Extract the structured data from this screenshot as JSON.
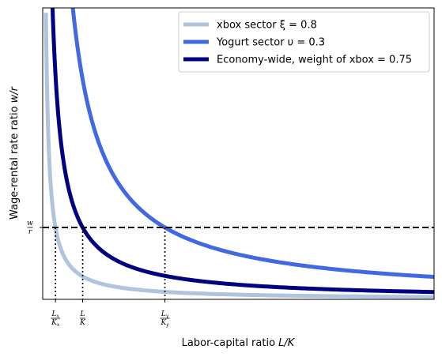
{
  "chart_data": {
    "type": "line",
    "title": "",
    "xlabel": "Labor-capital ratio L/K",
    "ylabel": "Wage-rental rate ratio w/r",
    "grid": false,
    "legend_placement": "top-right",
    "xlim": [
      0,
      4.9
    ],
    "ylim": [
      0,
      15
    ],
    "equilibrium_wage_rental": 3.7,
    "equilibrium_label": {
      "num": "w",
      "den": "r"
    },
    "ratio_marks": [
      {
        "num": "L",
        "sub_num": "x",
        "den": "K",
        "sub_den": "x",
        "x": 0.16
      },
      {
        "num": "L",
        "sub_num": "",
        "den": "K",
        "sub_den": "",
        "x": 0.5
      },
      {
        "num": "L",
        "sub_num": "y",
        "den": "K",
        "sub_den": "y",
        "x": 1.53
      }
    ],
    "series": [
      {
        "name": "xbox sector ξ = 0.8",
        "color": "#b0c4de",
        "coef": 0.59,
        "x_min": 0.04,
        "x_max": 4.9
      },
      {
        "name": "Yogurt sector υ = 0.3",
        "color": "#4169e1",
        "coef": 5.66,
        "x_min": 0.36,
        "x_max": 4.9
      },
      {
        "name": "Economy-wide, weight of xbox = 0.75",
        "color": "#000080",
        "coef": 1.85,
        "x_min": 0.12,
        "x_max": 4.9
      }
    ]
  }
}
